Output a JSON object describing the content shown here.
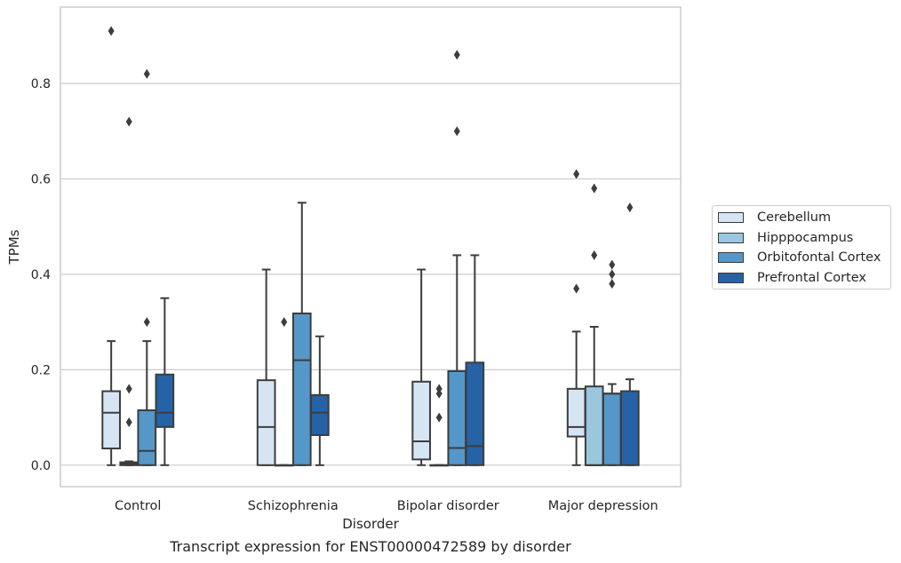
{
  "caption": "Transcript expression for ENST00000472589 by disorder",
  "chart_data": {
    "type": "box",
    "xlabel": "Disorder",
    "ylabel": "TPMs",
    "ylim": [
      -0.045,
      0.96
    ],
    "yticks": [
      0.0,
      0.2,
      0.4,
      0.6,
      0.8
    ],
    "ytick_labels": [
      "0.0",
      "0.2",
      "0.4",
      "0.6",
      "0.8"
    ],
    "grid": "horizontal",
    "legend_position": "right",
    "categories": [
      "Control",
      "Schizophrenia",
      "Bipolar disorder",
      "Major depression"
    ],
    "series": [
      {
        "name": "Cerebellum",
        "color": "#d6e5f4",
        "boxes": [
          {
            "min": 0.0,
            "q1": 0.035,
            "median": 0.11,
            "q3": 0.155,
            "max": 0.26,
            "outliers": [
              0.91
            ]
          },
          {
            "min": 0.0,
            "q1": 0.0,
            "median": 0.08,
            "q3": 0.178,
            "max": 0.41,
            "outliers": []
          },
          {
            "min": 0.0,
            "q1": 0.012,
            "median": 0.05,
            "q3": 0.175,
            "max": 0.41,
            "outliers": []
          },
          {
            "min": 0.0,
            "q1": 0.06,
            "median": 0.08,
            "q3": 0.16,
            "max": 0.28,
            "outliers": [
              0.37,
              0.61
            ]
          }
        ]
      },
      {
        "name": "Hipppocampus",
        "color": "#9bc6e0",
        "boxes": [
          {
            "min": 0.0,
            "q1": 0.0,
            "median": 0.003,
            "q3": 0.006,
            "max": 0.008,
            "outliers": [
              0.09,
              0.16,
              0.72
            ]
          },
          {
            "min": 0.0,
            "q1": 0.0,
            "median": 0.0,
            "q3": 0.0,
            "max": 0.0,
            "outliers": [
              0.3
            ]
          },
          {
            "min": 0.0,
            "q1": 0.0,
            "median": 0.0,
            "q3": 0.0,
            "max": 0.0,
            "outliers": [
              0.1,
              0.15,
              0.16
            ]
          },
          {
            "min": 0.0,
            "q1": 0.0,
            "median": 0.0,
            "q3": 0.165,
            "max": 0.29,
            "outliers": [
              0.44,
              0.58
            ]
          }
        ]
      },
      {
        "name": "Orbitofontal Cortex",
        "color": "#5597c9",
        "boxes": [
          {
            "min": 0.0,
            "q1": 0.0,
            "median": 0.03,
            "q3": 0.115,
            "max": 0.26,
            "outliers": [
              0.3,
              0.82
            ]
          },
          {
            "min": 0.0,
            "q1": 0.0,
            "median": 0.22,
            "q3": 0.318,
            "max": 0.55,
            "outliers": []
          },
          {
            "min": 0.0,
            "q1": 0.0,
            "median": 0.036,
            "q3": 0.197,
            "max": 0.44,
            "outliers": [
              0.7,
              0.86
            ]
          },
          {
            "min": 0.0,
            "q1": 0.0,
            "median": 0.15,
            "q3": 0.15,
            "max": 0.17,
            "outliers": [
              0.38,
              0.4,
              0.42
            ]
          }
        ]
      },
      {
        "name": "Prefrontal Cortex",
        "color": "#2563a6",
        "boxes": [
          {
            "min": 0.0,
            "q1": 0.08,
            "median": 0.11,
            "q3": 0.19,
            "max": 0.35,
            "outliers": []
          },
          {
            "min": 0.0,
            "q1": 0.063,
            "median": 0.11,
            "q3": 0.147,
            "max": 0.27,
            "outliers": []
          },
          {
            "min": 0.0,
            "q1": 0.0,
            "median": 0.04,
            "q3": 0.215,
            "max": 0.44,
            "outliers": []
          },
          {
            "min": 0.0,
            "q1": 0.0,
            "median": 0.155,
            "q3": 0.155,
            "max": 0.18,
            "outliers": [
              0.54
            ]
          }
        ]
      }
    ]
  }
}
